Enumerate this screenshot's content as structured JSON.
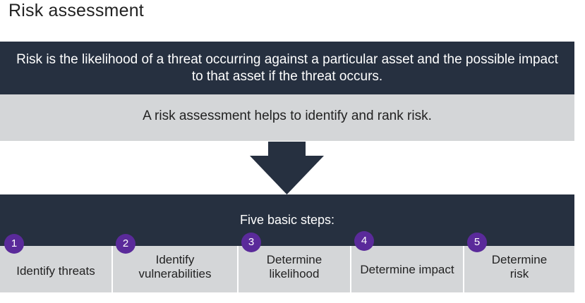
{
  "title": "Risk assessment",
  "definition": "Risk is the likelihood of a threat occurring against a particular asset and the possible impact to that asset if the threat occurs.",
  "purpose": "A risk assessment helps to identify and rank risk.",
  "steps_header": "Five  basic steps:",
  "steps": [
    {
      "number": "1",
      "label": "Identify threats"
    },
    {
      "number": "2",
      "label": "Identify vulnerabilities"
    },
    {
      "number": "3",
      "label": "Determine likelihood"
    },
    {
      "number": "4",
      "label": "Determine impact"
    },
    {
      "number": "5",
      "label": "Determine risk"
    }
  ],
  "colors": {
    "dark_band": "#263040",
    "light_band": "#d4d6d8",
    "badge": "#5a2a9a"
  }
}
